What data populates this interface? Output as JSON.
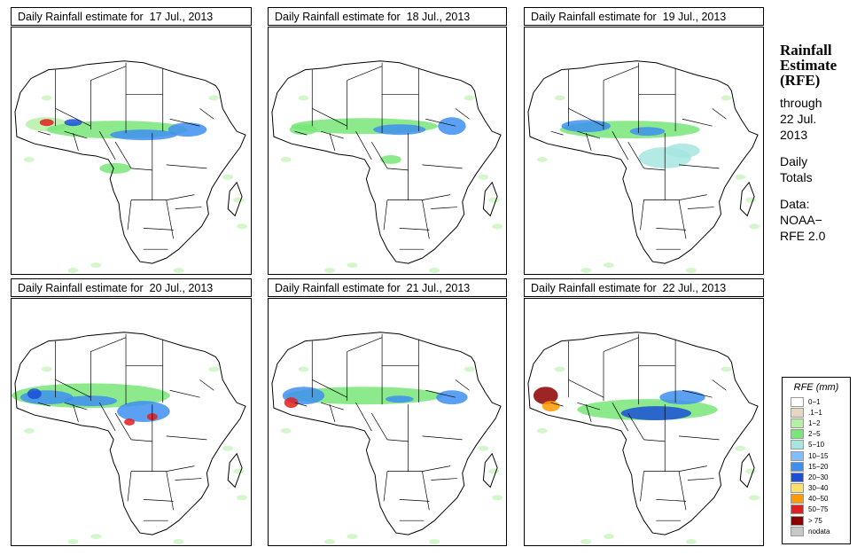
{
  "panels": [
    {
      "title": "Daily Rainfall estimate for  17 Jul., 2013"
    },
    {
      "title": "Daily Rainfall estimate for  18 Jul., 2013"
    },
    {
      "title": "Daily Rainfall estimate for  19 Jul., 2013"
    },
    {
      "title": "Daily Rainfall estimate for  20 Jul., 2013"
    },
    {
      "title": "Daily Rainfall estimate for  21 Jul., 2013"
    },
    {
      "title": "Daily Rainfall estimate for  22 Jul., 2013"
    }
  ],
  "side": {
    "heading1": "Rainfall",
    "heading2": "Estimate",
    "heading3": "(RFE)",
    "through": "through",
    "date1": "22 Jul.",
    "date2": "2013",
    "daily": "Daily",
    "totals": "Totals",
    "data_label": "Data:",
    "source1": "NOAA−",
    "source2": "RFE 2.0"
  },
  "legend": {
    "title": "RFE (mm)",
    "items": [
      {
        "label": "0−1",
        "color": "#ffffff"
      },
      {
        "label": ".1−1",
        "color": "#e6d7bf"
      },
      {
        "label": "1−2",
        "color": "#b6f0a6"
      },
      {
        "label": "2−5",
        "color": "#78e678"
      },
      {
        "label": "5−10",
        "color": "#a6e6e1"
      },
      {
        "label": "10−15",
        "color": "#7fbfff"
      },
      {
        "label": "15−20",
        "color": "#3e8ff0"
      },
      {
        "label": "20−30",
        "color": "#1a4fd6"
      },
      {
        "label": "30−40",
        "color": "#ffe066"
      },
      {
        "label": "40−50",
        "color": "#ff9a00"
      },
      {
        "label": "50−75",
        "color": "#e02020"
      },
      {
        "label": "> 75",
        "color": "#8b0000"
      },
      {
        "label": "nodata",
        "color": "#c8c8c8"
      }
    ]
  }
}
